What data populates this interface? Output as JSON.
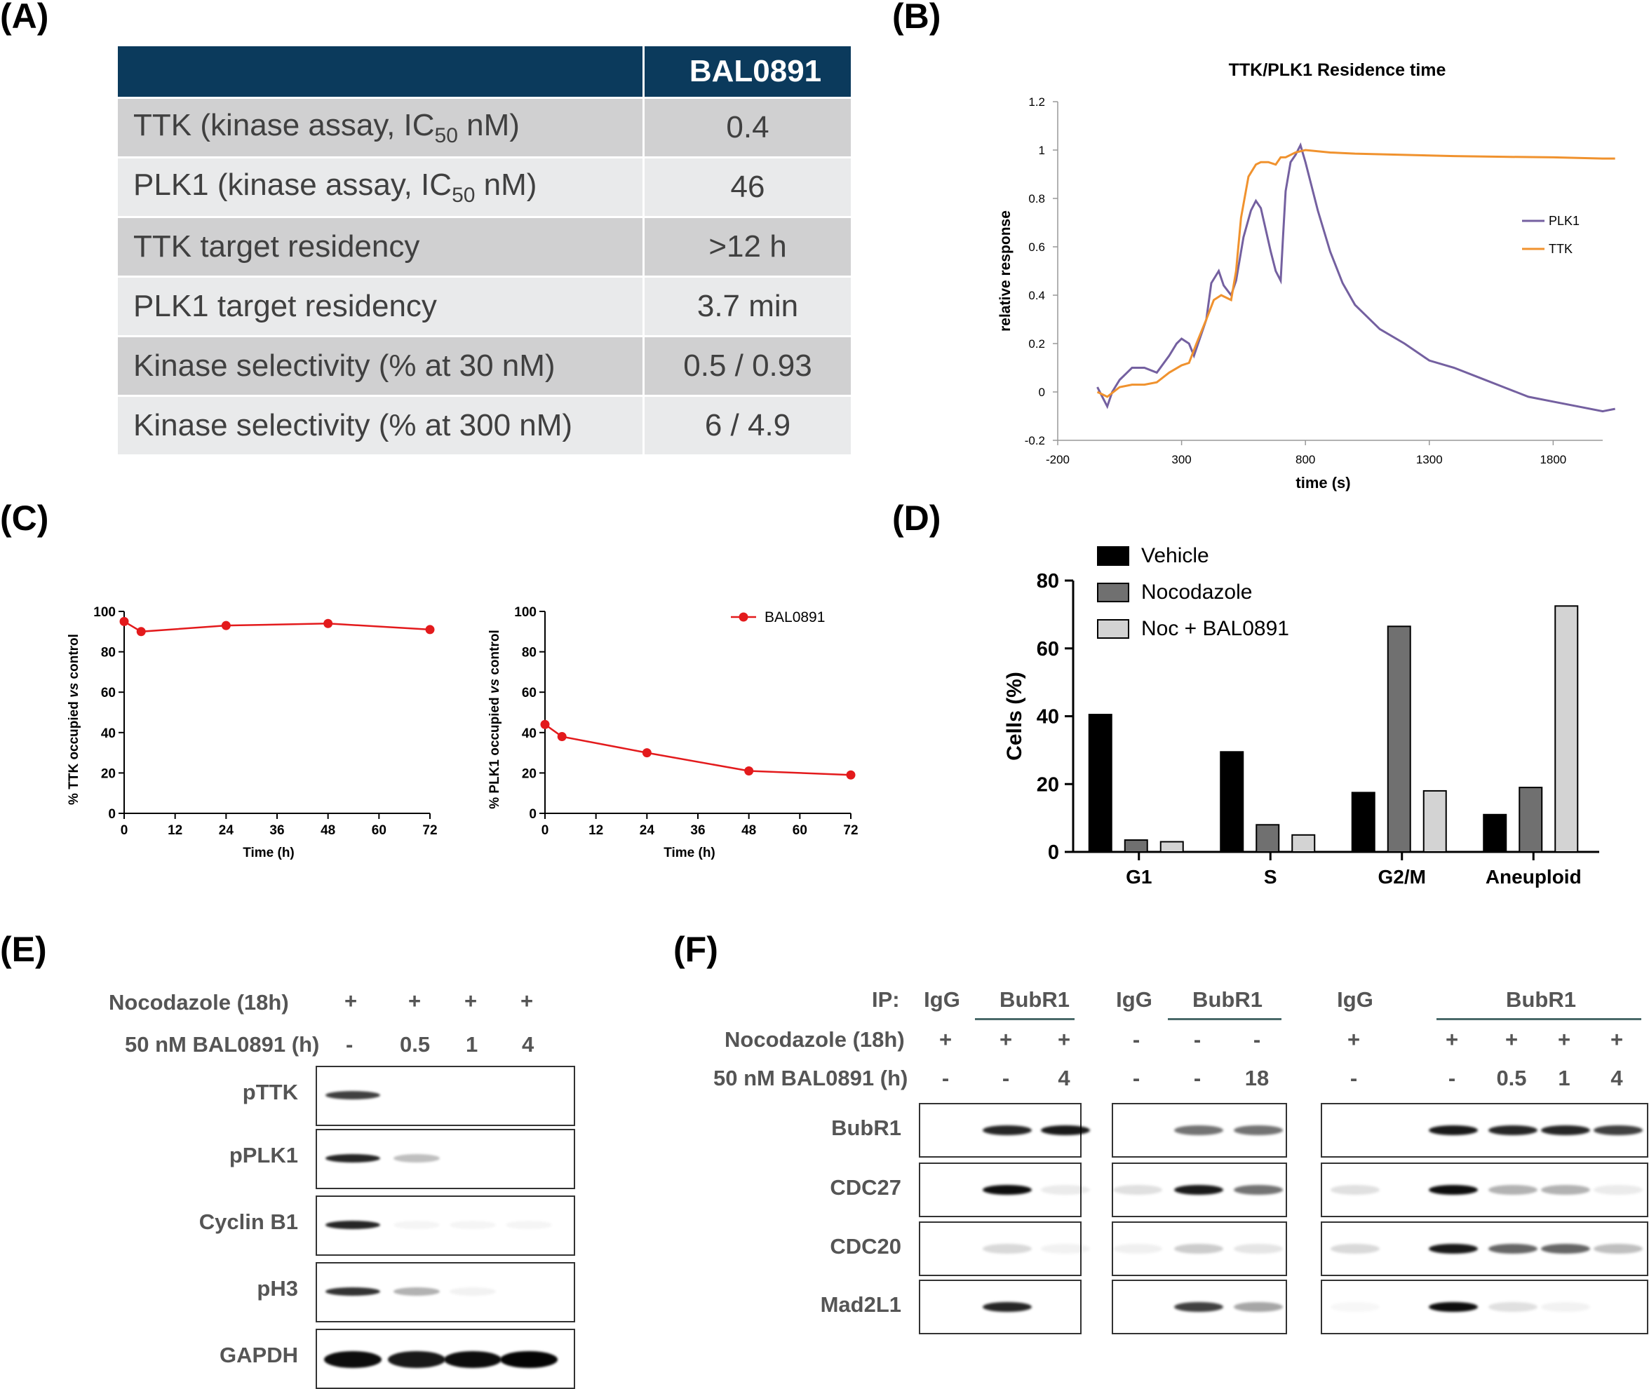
{
  "panel_labels": {
    "a": "(A)",
    "b": "(B)",
    "c": "(C)",
    "d": "(D)",
    "e": "(E)",
    "f": "(F)"
  },
  "tableA": {
    "header": "BAL0891",
    "rows": [
      {
        "label_pre": "TTK (kinase assay, IC",
        "sub": "50",
        "label_post": " nM)",
        "value": "0.4"
      },
      {
        "label_pre": "PLK1 (kinase assay, IC",
        "sub": "50",
        "label_post": " nM)",
        "value": "46"
      },
      {
        "label_pre": "TTK target residency",
        "sub": "",
        "label_post": "",
        "value": ">12 h"
      },
      {
        "label_pre": "PLK1 target residency",
        "sub": "",
        "label_post": "",
        "value": "3.7 min"
      },
      {
        "label_pre": "Kinase selectivity (% at 30 nM)",
        "sub": "",
        "label_post": "",
        "value": "0.5 / 0.93"
      },
      {
        "label_pre": "Kinase selectivity (% at 300 nM)",
        "sub": "",
        "label_post": "",
        "value": "6 / 4.9"
      }
    ]
  },
  "chart_data": [
    {
      "type": "line",
      "title": "TTK/PLK1 Residence time",
      "xlabel": "time (s)",
      "ylabel": "relative response",
      "xlim": [
        -200,
        2000
      ],
      "ylim": [
        -0.2,
        1.2
      ],
      "xticks": [
        "-200",
        "300",
        "800",
        "1300",
        "1800"
      ],
      "yticks": [
        "-0.2",
        "0",
        "0.2",
        "0.4",
        "0.6",
        "0.8",
        "1",
        "1.2"
      ],
      "legend": [
        "PLK1",
        "TTK"
      ],
      "colors": {
        "PLK1": "#7460a0",
        "TTK": "#f0922e"
      },
      "series": [
        {
          "name": "PLK1",
          "x": [
            -40,
            -20,
            0,
            20,
            50,
            80,
            100,
            150,
            200,
            250,
            280,
            300,
            330,
            350,
            400,
            420,
            450,
            470,
            500,
            520,
            550,
            580,
            600,
            620,
            640,
            660,
            680,
            700,
            710,
            720,
            740,
            760,
            780,
            800,
            850,
            900,
            950,
            1000,
            1100,
            1200,
            1300,
            1400,
            1500,
            1600,
            1700,
            1800,
            1900,
            2000,
            2050
          ],
          "y": [
            0.02,
            -0.02,
            -0.06,
            0.0,
            0.05,
            0.08,
            0.1,
            0.1,
            0.08,
            0.15,
            0.2,
            0.22,
            0.2,
            0.15,
            0.3,
            0.45,
            0.5,
            0.44,
            0.4,
            0.46,
            0.64,
            0.75,
            0.79,
            0.76,
            0.67,
            0.58,
            0.5,
            0.46,
            0.65,
            0.83,
            0.95,
            0.98,
            1.02,
            0.95,
            0.75,
            0.58,
            0.45,
            0.36,
            0.26,
            0.2,
            0.13,
            0.1,
            0.06,
            0.02,
            -0.02,
            -0.04,
            -0.06,
            -0.08,
            -0.07
          ]
        },
        {
          "name": "TTK",
          "x": [
            -40,
            0,
            50,
            100,
            150,
            200,
            250,
            300,
            330,
            360,
            400,
            430,
            460,
            500,
            520,
            540,
            570,
            600,
            620,
            650,
            680,
            700,
            720,
            760,
            800,
            900,
            1000,
            1200,
            1400,
            1600,
            1800,
            2000,
            2050
          ],
          "y": [
            0.0,
            -0.02,
            0.02,
            0.03,
            0.03,
            0.04,
            0.08,
            0.11,
            0.12,
            0.2,
            0.3,
            0.38,
            0.4,
            0.38,
            0.5,
            0.72,
            0.89,
            0.94,
            0.95,
            0.95,
            0.94,
            0.97,
            0.97,
            0.99,
            1.0,
            0.99,
            0.985,
            0.98,
            0.975,
            0.972,
            0.97,
            0.965,
            0.965
          ]
        }
      ]
    },
    {
      "type": "line",
      "title": "",
      "xlabel": "Time (h)",
      "ylabel_pre": "% TTK occupied ",
      "ylabel_it": "vs",
      "ylabel_post": " control",
      "xlim": [
        0,
        72
      ],
      "ylim": [
        0,
        100
      ],
      "xticks": [
        "0",
        "12",
        "24",
        "36",
        "48",
        "60",
        "72"
      ],
      "yticks": [
        "0",
        "20",
        "40",
        "60",
        "80",
        "100"
      ],
      "series": [
        {
          "name": "BAL0891",
          "x": [
            0,
            4,
            24,
            48,
            72
          ],
          "y": [
            95,
            90,
            93,
            94,
            91
          ]
        }
      ]
    },
    {
      "type": "line",
      "title": "",
      "xlabel": "Time (h)",
      "ylabel_pre": "% PLK1 occupied ",
      "ylabel_it": "vs",
      "ylabel_post": " control",
      "xlim": [
        0,
        72
      ],
      "ylim": [
        0,
        100
      ],
      "xticks": [
        "0",
        "12",
        "24",
        "36",
        "48",
        "60",
        "72"
      ],
      "yticks": [
        "0",
        "20",
        "40",
        "60",
        "80",
        "100"
      ],
      "legend": [
        "BAL0891"
      ],
      "series": [
        {
          "name": "BAL0891",
          "x": [
            0,
            4,
            24,
            48,
            72
          ],
          "y": [
            44,
            38,
            30,
            21,
            19
          ]
        }
      ]
    },
    {
      "type": "bar",
      "title": "",
      "xlabel": "",
      "ylabel": "Cells (%)",
      "ylim": [
        0,
        80
      ],
      "yticks": [
        "0",
        "20",
        "40",
        "60",
        "80"
      ],
      "categories": [
        "G1",
        "S",
        "G2/M",
        "Aneuploid"
      ],
      "series": [
        {
          "name": "Vehicle",
          "color": "#000000",
          "values": [
            40.5,
            29.5,
            17.5,
            11
          ]
        },
        {
          "name": "Nocodazole",
          "color": "#707070",
          "values": [
            3.5,
            8,
            66.5,
            19
          ]
        },
        {
          "name": "Noc + BAL0891",
          "color": "#d3d3d3",
          "values": [
            3,
            5,
            18,
            72.5
          ]
        }
      ]
    }
  ],
  "panelE": {
    "row1_label": "Nocodazole (18h)",
    "row1_values": [
      "+",
      "+",
      "+",
      "+"
    ],
    "row2_label": "50 nM BAL0891 (h)",
    "row2_values": [
      "-",
      "0.5",
      "1",
      "4"
    ],
    "blots": [
      "pTTK",
      "pPLK1",
      "Cyclin B1",
      "pH3",
      "GAPDH"
    ]
  },
  "panelF": {
    "ip_label": "IP:",
    "row1_label": "Nocodazole (18h)",
    "row2_label": "50 nM BAL0891 (h)",
    "blots": [
      "BubR1",
      "CDC27",
      "CDC20",
      "Mad2L1"
    ],
    "g1": {
      "igg": "IgG",
      "bub": "BubR1",
      "noc": [
        "+",
        "+",
        "+"
      ],
      "bal": [
        "-",
        "-",
        "4"
      ]
    },
    "g2": {
      "igg": "IgG",
      "bub": "BubR1",
      "noc": [
        "-",
        "-",
        "-"
      ],
      "bal": [
        "-",
        "-",
        "18"
      ]
    },
    "g3": {
      "igg": "IgG",
      "bub": "BubR1",
      "noc": [
        "+",
        "+",
        "+",
        "+",
        "+"
      ],
      "bal": [
        "-",
        "-",
        "0.5",
        "1",
        "4"
      ]
    }
  }
}
